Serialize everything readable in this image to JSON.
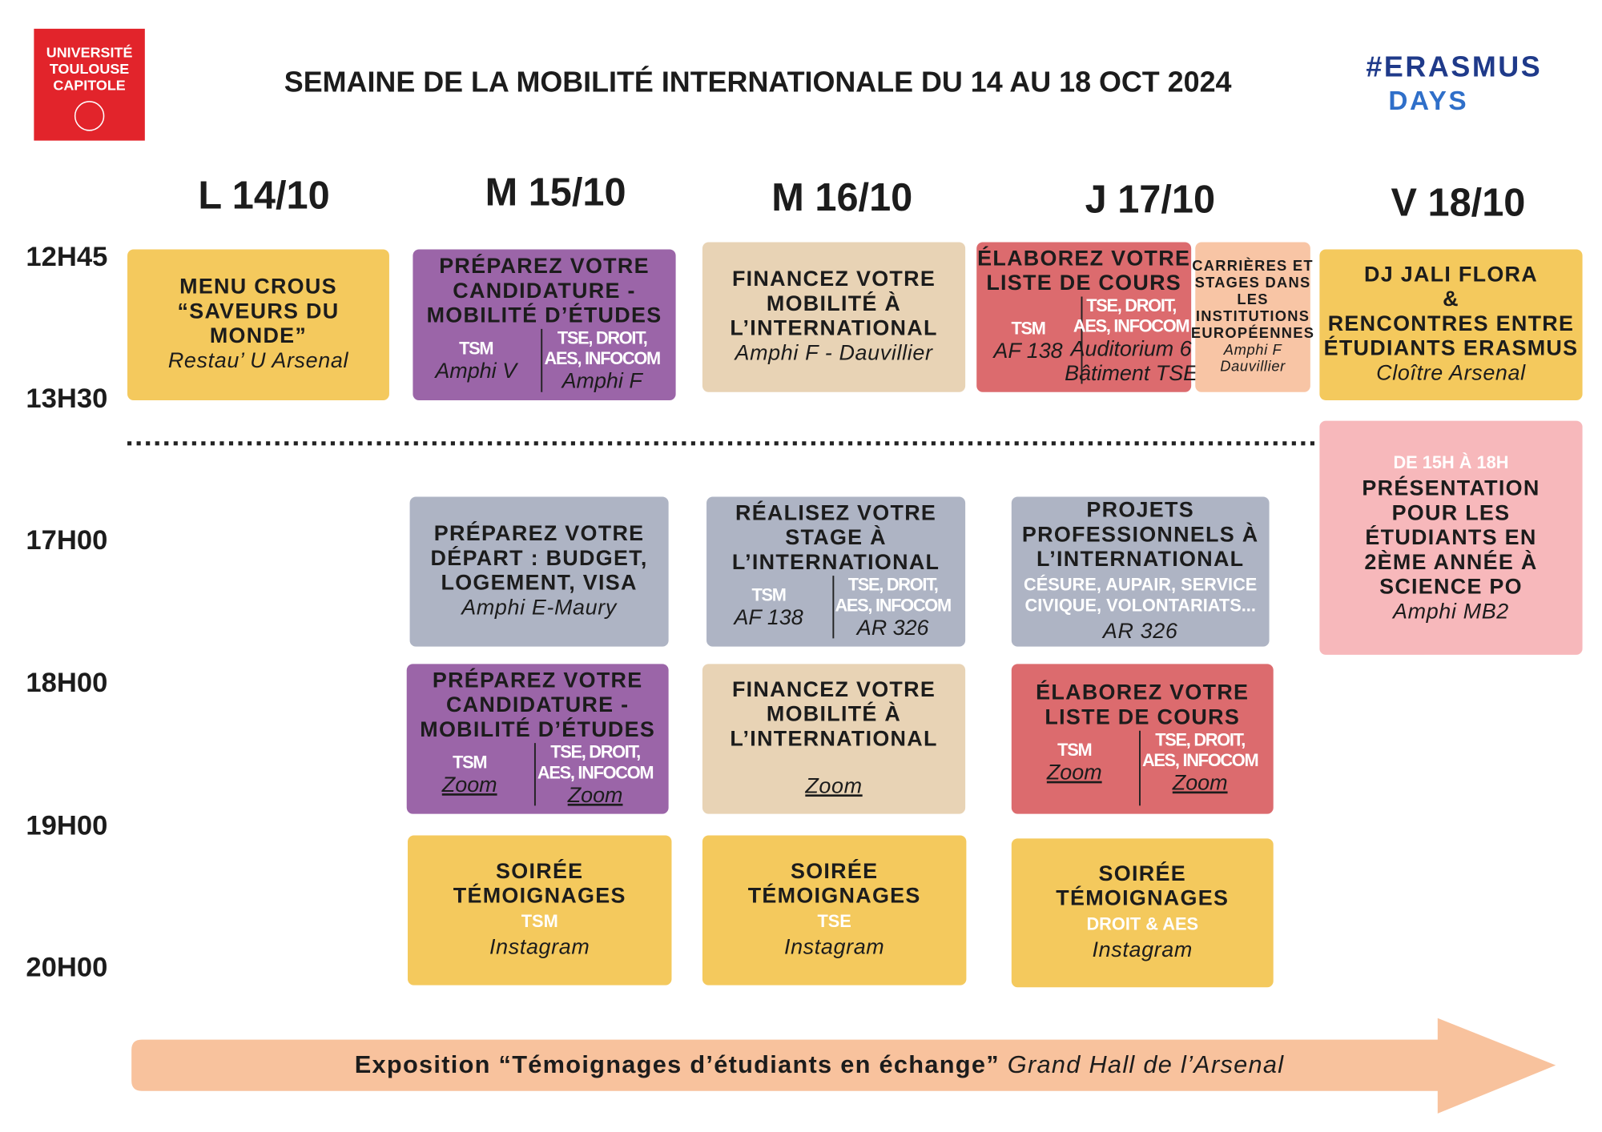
{
  "logo": {
    "lines": [
      "UNIVERSITÉ",
      "TOULOUSE",
      "CAPITOLE"
    ]
  },
  "title": "SEMAINE DE LA MOBILITÉ INTERNATIONALE DU 14 AU 18 OCT 2024",
  "erasmus": {
    "lines": [
      "#ERASMUS",
      "DAYS"
    ]
  },
  "days": [
    "L 14/10",
    "M 15/10",
    "M 16/10",
    "J 17/10",
    "V 18/10"
  ],
  "times": [
    "12H45",
    "13H30",
    "17H00",
    "18H00",
    "19H00",
    "20H00"
  ],
  "events": [
    {
      "title": [
        "MENU CROUS",
        "“SAVEURS DU",
        "MONDE”"
      ],
      "place": [
        "Restau’ U Arsenal"
      ]
    },
    {
      "title": [
        "PRÉPAREZ VOTRE",
        "CANDIDATURE -",
        "MOBILITÉ D’ÉTUDES"
      ],
      "cols": [
        {
          "label": [
            "TSM"
          ],
          "place": [
            "Amphi V"
          ]
        },
        {
          "label": [
            "TSE, DROIT,",
            "AES, INFOCOM"
          ],
          "place": [
            "Amphi F"
          ]
        }
      ]
    },
    {
      "title": [
        "FINANCEZ VOTRE",
        "MOBILITÉ À",
        "L’INTERNATIONAL"
      ],
      "place": [
        "Amphi F - Dauvillier"
      ]
    },
    {
      "title": [
        "ÉLABOREZ VOTRE",
        "LISTE DE COURS"
      ],
      "cols": [
        {
          "label": [
            "TSM"
          ],
          "place": [
            "AF 138"
          ]
        },
        {
          "label": [
            "TSE, DROIT,",
            "AES, INFOCOM"
          ],
          "place": [
            "Auditorium 6",
            "Bâtiment TSE"
          ]
        }
      ]
    },
    {
      "title": [
        "CARRIÈRES ET",
        "STAGES DANS",
        "LES",
        "INSTITUTIONS",
        "EUROPÉENNES"
      ],
      "place": [
        "Amphi F",
        "Dauvillier"
      ]
    },
    {
      "title": [
        "DJ JALI FLORA",
        "&",
        "RENCONTRES ENTRE",
        "ÉTUDIANTS ERASMUS"
      ],
      "place": [
        "Cloître Arsenal"
      ]
    },
    {
      "note": [
        "DE 15H À 18H"
      ],
      "title": [
        "PRÉSENTATION",
        "POUR LES",
        "ÉTUDIANTS EN",
        "2ÈME ANNÉE À",
        "SCIENCE PO"
      ],
      "place": [
        "Amphi MB2"
      ]
    },
    {
      "title": [
        "PRÉPAREZ VOTRE",
        "DÉPART : BUDGET,",
        "LOGEMENT, VISA"
      ],
      "place": [
        "Amphi E-Maury"
      ]
    },
    {
      "title": [
        "RÉALISEZ VOTRE",
        "STAGE À",
        "L’INTERNATIONAL"
      ],
      "cols": [
        {
          "label": [
            "TSM"
          ],
          "place": [
            "AF 138"
          ]
        },
        {
          "label": [
            "TSE, DROIT,",
            "AES, INFOCOM"
          ],
          "place": [
            "AR 326"
          ]
        }
      ]
    },
    {
      "title": [
        "PROJETS",
        "PROFESSIONNELS À",
        "L’INTERNATIONAL"
      ],
      "note": [
        "CÉSURE, AUPAIR, SERVICE",
        "CIVIQUE, VOLONTARIATS..."
      ],
      "place": [
        "AR 326"
      ]
    },
    {
      "title": [
        "PRÉPAREZ VOTRE",
        "CANDIDATURE -",
        "MOBILITÉ D’ÉTUDES"
      ],
      "cols": [
        {
          "label": [
            "TSM"
          ],
          "place": [
            "Zoom"
          ]
        },
        {
          "label": [
            "TSE, DROIT,",
            "AES, INFOCOM"
          ],
          "place": [
            "Zoom"
          ]
        }
      ]
    },
    {
      "title": [
        "FINANCEZ VOTRE",
        "MOBILITÉ À",
        "L’INTERNATIONAL"
      ],
      "place": [
        "Zoom"
      ]
    },
    {
      "title": [
        "ÉLABOREZ VOTRE",
        "LISTE DE COURS"
      ],
      "cols": [
        {
          "label": [
            "TSM"
          ],
          "place": [
            "Zoom"
          ]
        },
        {
          "label": [
            "TSE, DROIT,",
            "AES, INFOCOM"
          ],
          "place": [
            "Zoom"
          ]
        }
      ]
    },
    {
      "title": [
        "SOIRÉE",
        "TÉMOIGNAGES"
      ],
      "note": [
        "TSM"
      ],
      "place": [
        "Instagram"
      ]
    },
    {
      "title": [
        "SOIRÉE",
        "TÉMOIGNAGES"
      ],
      "note": [
        "TSE"
      ],
      "place": [
        "Instagram"
      ]
    },
    {
      "title": [
        "SOIRÉE",
        "TÉMOIGNAGES"
      ],
      "note": [
        "DROIT & AES"
      ],
      "place": [
        "Instagram"
      ]
    }
  ],
  "banner": {
    "title": "Exposition “Témoignages d’étudiants en échange”",
    "place": "Grand Hall de l’Arsenal"
  }
}
